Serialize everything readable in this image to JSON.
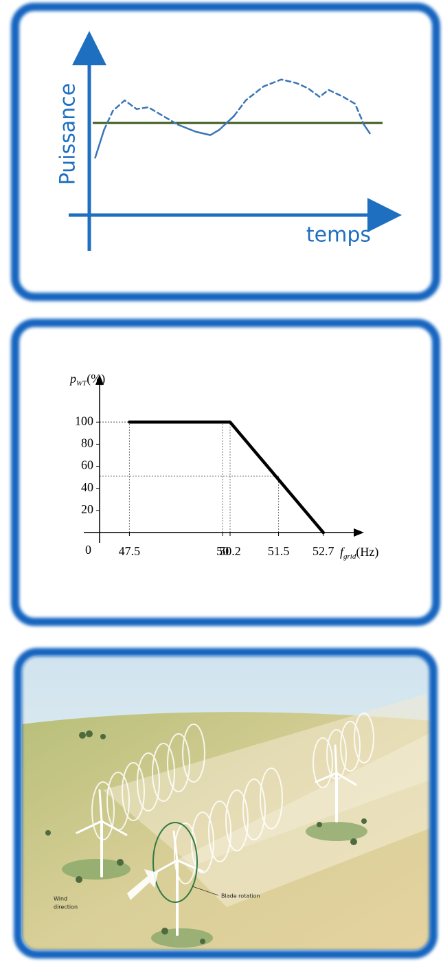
{
  "chart_data": [
    {
      "type": "line",
      "ylabel": "Puissance",
      "xlabel": "temps",
      "axis_color": "#1f6fc0",
      "xlim": [
        0,
        100
      ],
      "ylim": [
        0,
        100
      ],
      "x": [
        2,
        5,
        8,
        12,
        16,
        20,
        24,
        30,
        36,
        41,
        44,
        49,
        53,
        59,
        65,
        70,
        74,
        78,
        81,
        86,
        90,
        93,
        95
      ],
      "series": [
        {
          "color": "#3a75b5",
          "style": "solid",
          "values": [
            33,
            49,
            null,
            null,
            null,
            null,
            null,
            52,
            48,
            46,
            49,
            57,
            null,
            null,
            null,
            null,
            null,
            null,
            null,
            null,
            null,
            52,
            47
          ]
        },
        {
          "color": "#3a75b5",
          "style": "dashed",
          "values": [
            null,
            49,
            60,
            66,
            61,
            62,
            58,
            52,
            null,
            null,
            null,
            57,
            66,
            74,
            78,
            76,
            73,
            68,
            72,
            68,
            64,
            52,
            null
          ]
        }
      ],
      "reference_line": {
        "value": 53,
        "color": "#3d5a1e"
      }
    },
    {
      "type": "line",
      "ylabel": {
        "main": "p",
        "sub": "WT",
        "unit": "(%)"
      },
      "xlabel": {
        "main": "f",
        "sub": "grid",
        "unit": "(Hz)"
      },
      "axis_color": "#000000",
      "xlim": [
        46.7,
        53.7
      ],
      "ylim": [
        0,
        140
      ],
      "xticks": [
        47.5,
        50,
        50.2,
        51.5,
        52.7
      ],
      "yticks": [
        0,
        20,
        40,
        60,
        80,
        100
      ],
      "x": [
        47.5,
        50.2,
        52.7
      ],
      "series": [
        {
          "color": "#000000",
          "style": "solid",
          "values": [
            100,
            100,
            0
          ]
        }
      ],
      "guides": [
        {
          "x": 47.5,
          "y": 100
        },
        {
          "x": 50,
          "y": 100
        },
        {
          "x": 50.2,
          "y": 100
        },
        {
          "x": 51.5,
          "y": 51
        }
      ]
    }
  ],
  "illustration": {
    "labels": {
      "blade_rotation": "Blade rotation",
      "wind_direction": [
        "Wind",
        "direction"
      ]
    }
  }
}
